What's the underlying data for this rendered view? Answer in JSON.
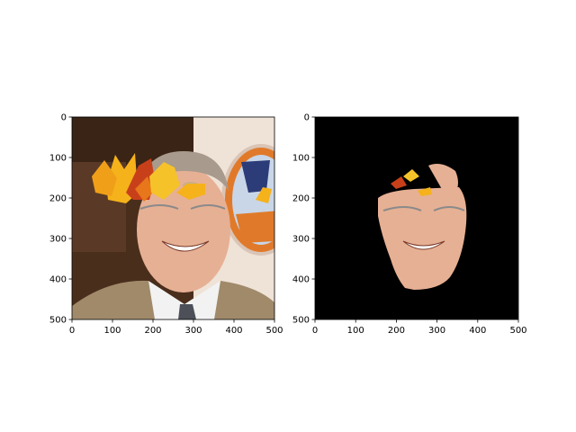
{
  "chart_data": [
    {
      "type": "image",
      "title": "",
      "xlabel": "",
      "ylabel": "",
      "xlim": [
        0,
        500
      ],
      "ylim": [
        500,
        0
      ],
      "x_ticks": [
        0,
        100,
        200,
        300,
        400,
        500
      ],
      "y_ticks": [
        0,
        100,
        200,
        300,
        400,
        500
      ],
      "y_inverted": true,
      "content": "photo of smiling man in suit with autumn leaves overlay across forehead"
    },
    {
      "type": "image",
      "title": "",
      "xlabel": "",
      "ylabel": "",
      "xlim": [
        0,
        500
      ],
      "ylim": [
        500,
        0
      ],
      "x_ticks": [
        0,
        100,
        200,
        300,
        400,
        500
      ],
      "y_ticks": [
        0,
        100,
        200,
        300,
        400,
        500
      ],
      "y_inverted": true,
      "content": "face segmentation mask on black background"
    }
  ],
  "colors": {
    "mask_background": "#000000",
    "leaf_yellow": "#f5b21a",
    "leaf_orange": "#e8761a",
    "leaf_red": "#c8401a",
    "skin": "#e6b094",
    "suit": "#a08a6a",
    "backdrop_logo": "#e07a2a"
  }
}
